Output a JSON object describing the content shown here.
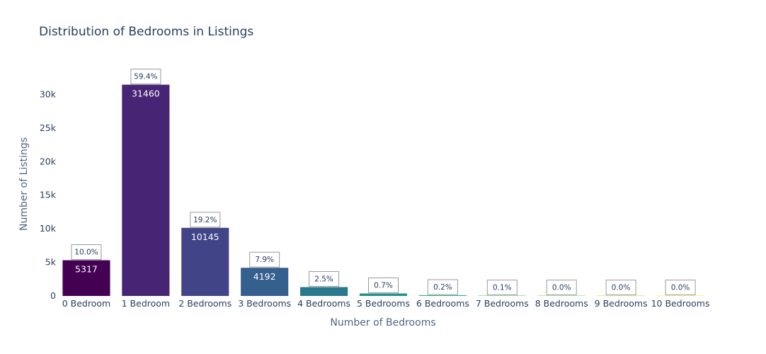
{
  "chart_data": {
    "type": "bar",
    "title": "Distribution of Bedrooms in Listings",
    "xlabel": "Number of Bedrooms",
    "ylabel": "Number of Listings",
    "categories": [
      "0 Bedroom",
      "1 Bedroom",
      "2 Bedrooms",
      "3 Bedrooms",
      "4 Bedrooms",
      "5 Bedrooms",
      "6 Bedrooms",
      "7 Bedrooms",
      "8 Bedrooms",
      "9 Bedrooms",
      "10 Bedrooms"
    ],
    "values": [
      5317,
      31460,
      10145,
      4192,
      1320,
      370,
      105,
      50,
      12,
      6,
      3
    ],
    "value_labels": [
      "5317",
      "31460",
      "10145",
      "4192",
      "",
      "",
      "",
      "",
      "",
      "",
      ""
    ],
    "percent_labels": [
      "10.0%",
      "59.4%",
      "19.2%",
      "7.9%",
      "2.5%",
      "0.7%",
      "0.2%",
      "0.1%",
      "0.0%",
      "0.0%",
      "0.0%"
    ],
    "colors": [
      "#440154",
      "#482475",
      "#414487",
      "#355f8d",
      "#2a788e",
      "#21918c",
      "#22a884",
      "#44bf70",
      "#7ad151",
      "#bddf26",
      "#fde725"
    ],
    "ylim": [
      0,
      33000
    ],
    "yticks": [
      0,
      5000,
      10000,
      15000,
      20000,
      25000,
      30000
    ],
    "ytick_labels": [
      "0",
      "5k",
      "10k",
      "15k",
      "20k",
      "25k",
      "30k"
    ],
    "grid": false,
    "legend": false
  }
}
